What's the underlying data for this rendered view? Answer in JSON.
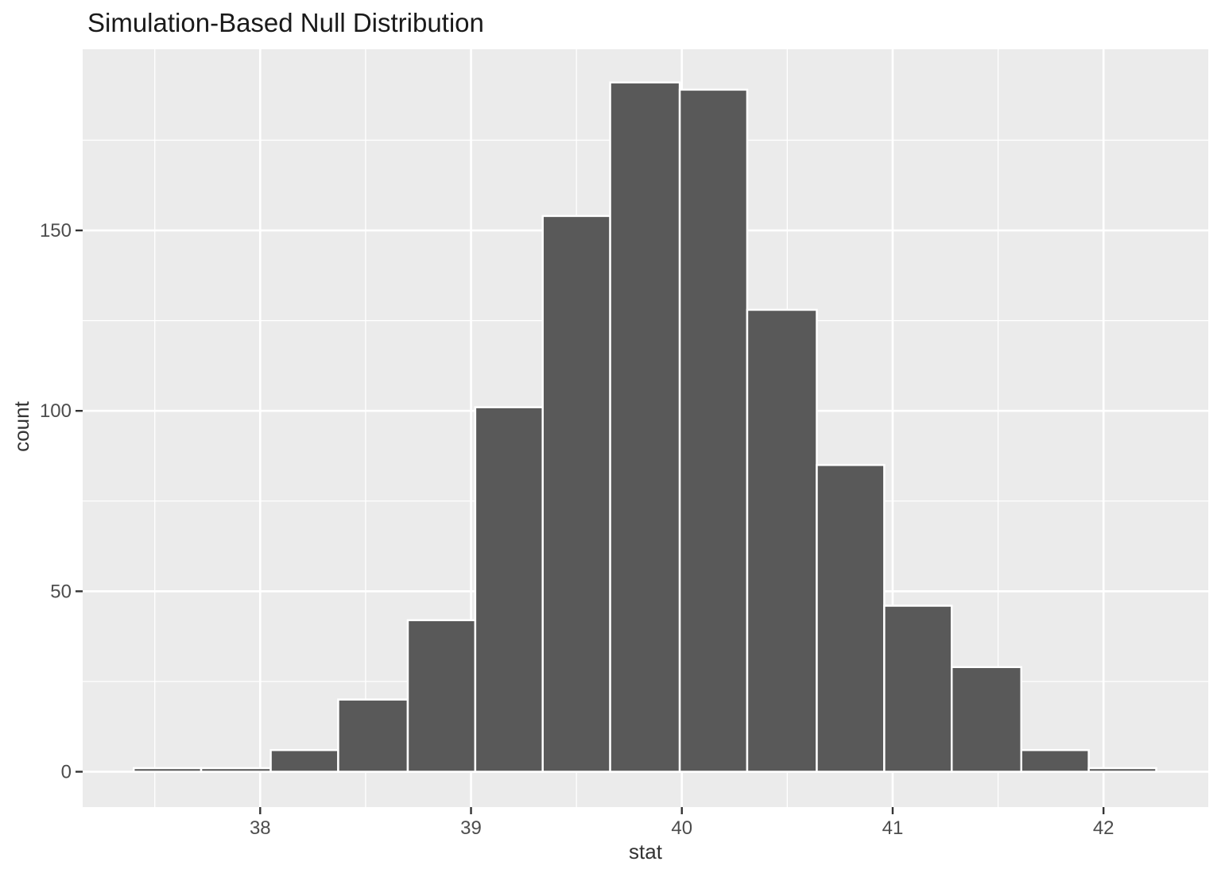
{
  "page": {
    "background": "#ffffff"
  },
  "chart_data": {
    "type": "bar",
    "subtype": "histogram",
    "title": "Simulation-Based Null Distribution",
    "xlabel": "stat",
    "ylabel": "count",
    "bin_edges": [
      37.4,
      37.72,
      38.05,
      38.37,
      38.7,
      39.02,
      39.34,
      39.66,
      39.99,
      40.31,
      40.64,
      40.96,
      41.28,
      41.61,
      41.93,
      42.25
    ],
    "counts": [
      1,
      1,
      6,
      20,
      42,
      101,
      154,
      191,
      189,
      128,
      85,
      46,
      29,
      6,
      1
    ],
    "x_ticks": [
      38,
      39,
      40,
      41,
      42
    ],
    "x_minor_ticks": [
      37.5,
      38.5,
      39.5,
      40.5,
      41.5
    ],
    "y_ticks": [
      0,
      50,
      100,
      150
    ],
    "y_minor_ticks": [
      25,
      75,
      125,
      175
    ],
    "x_range": [
      37.158,
      42.497
    ],
    "y_range": [
      -9.8,
      200.2
    ],
    "grid": true,
    "legend": "none",
    "colors": {
      "bar_fill": "#595959",
      "bar_stroke": "#ffffff",
      "panel_fill": "#ebebeb",
      "grid_major": "#ffffff",
      "grid_minor": "#ffffff",
      "tick_mark": "#333333",
      "tick_label": "#4d4d4d",
      "axis_title": "#333333",
      "title": "#1a1a1a"
    }
  }
}
